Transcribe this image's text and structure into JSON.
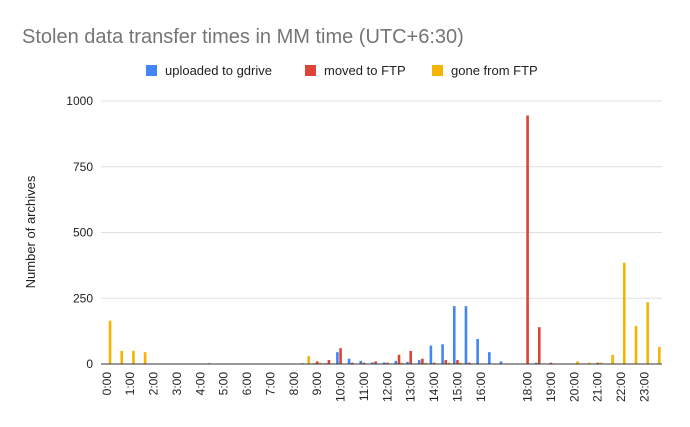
{
  "chart_data": {
    "type": "bar",
    "title": "Stolen data transfer times in MM time (UTC+6:30)",
    "xlabel": "",
    "ylabel": "Number of archives",
    "ylim": [
      0,
      1000
    ],
    "yticks": [
      0,
      250,
      500,
      750,
      1000
    ],
    "grid": true,
    "legend_position": "top",
    "colors": {
      "uploaded": "#4285f4",
      "moved": "#db4437",
      "gone": "#f4b400",
      "grid": "#e0e0e0",
      "baseline": "#333333"
    },
    "categories": [
      "0:00",
      "0:30",
      "1:00",
      "1:30",
      "2:00",
      "2:30",
      "3:00",
      "3:30",
      "4:00",
      "4:30",
      "5:00",
      "5:30",
      "6:00",
      "6:30",
      "7:00",
      "7:30",
      "8:00",
      "8:30",
      "9:00",
      "9:30",
      "10:00",
      "10:30",
      "11:00",
      "11:30",
      "12:00",
      "12:30",
      "13:00",
      "13:30",
      "14:00",
      "14:30",
      "15:00",
      "15:30",
      "16:00",
      "16:30",
      "17:00",
      "17:30",
      "18:00",
      "18:30",
      "19:00",
      "19:30",
      "20:00",
      "20:30",
      "21:00",
      "21:30",
      "22:00",
      "22:30",
      "23:00",
      "23:30"
    ],
    "tick_labels": [
      "0:00",
      "1:00",
      "2:00",
      "3:00",
      "4:00",
      "5:00",
      "6:00",
      "7:00",
      "8:00",
      "9:00",
      "10:00",
      "11:00",
      "12:00",
      "13:00",
      "14:00",
      "15:00",
      "16:00",
      "18:00",
      "19:00",
      "20:00",
      "21:00",
      "22:00",
      "23:00"
    ],
    "series": [
      {
        "name": "uploaded to gdrive",
        "color": "#4285f4",
        "values": [
          0,
          0,
          0,
          0,
          0,
          0,
          0,
          0,
          0,
          3,
          0,
          0,
          0,
          0,
          0,
          0,
          0,
          3,
          3,
          3,
          45,
          20,
          12,
          6,
          6,
          12,
          8,
          15,
          70,
          75,
          220,
          220,
          95,
          45,
          10,
          0,
          0,
          5,
          0,
          0,
          0,
          0,
          0,
          0,
          0,
          0,
          0,
          0
        ]
      },
      {
        "name": "moved to FTP",
        "color": "#db4437",
        "values": [
          0,
          0,
          0,
          0,
          0,
          0,
          0,
          0,
          0,
          0,
          0,
          0,
          0,
          0,
          0,
          0,
          0,
          0,
          10,
          15,
          60,
          5,
          5,
          10,
          5,
          35,
          50,
          20,
          5,
          15,
          15,
          5,
          0,
          0,
          0,
          0,
          945,
          140,
          5,
          0,
          0,
          0,
          5,
          0,
          0,
          0,
          0,
          0
        ]
      },
      {
        "name": "gone from FTP",
        "color": "#f4b400",
        "values": [
          165,
          50,
          50,
          45,
          0,
          0,
          0,
          0,
          0,
          0,
          0,
          0,
          0,
          0,
          0,
          0,
          0,
          30,
          5,
          0,
          0,
          0,
          0,
          0,
          0,
          5,
          0,
          5,
          0,
          5,
          5,
          0,
          0,
          0,
          0,
          0,
          0,
          0,
          0,
          0,
          10,
          5,
          5,
          35,
          385,
          145,
          235,
          65
        ]
      }
    ]
  }
}
